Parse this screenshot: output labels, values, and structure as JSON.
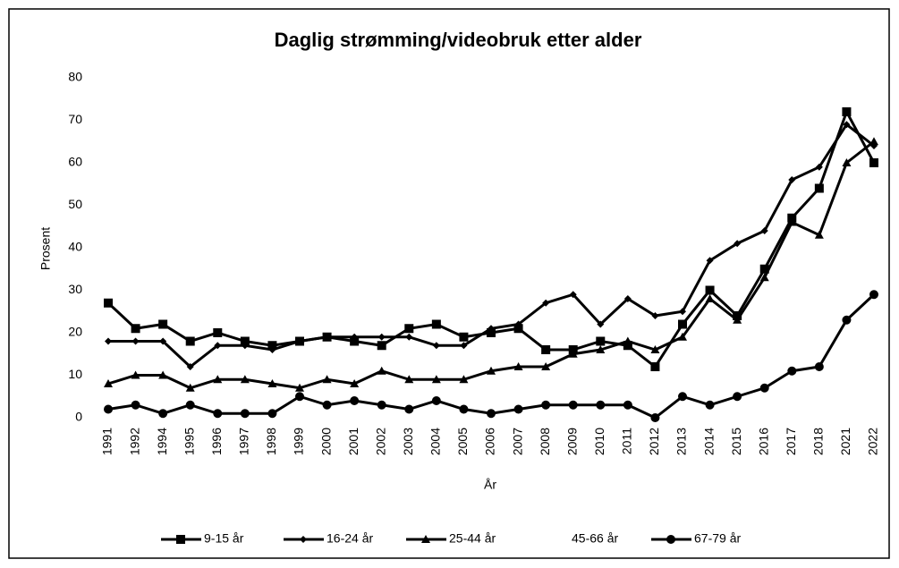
{
  "chart_data": {
    "type": "line",
    "title": "Daglig strømming/videobruk etter alder",
    "x_label": "År",
    "y_label": "Prosent",
    "categories": [
      "1991",
      "1992",
      "1994",
      "1995",
      "1996",
      "1997",
      "1998",
      "1999",
      "2000",
      "2001",
      "2002",
      "2003",
      "2004",
      "2005",
      "2006",
      "2007",
      "2008",
      "2009",
      "2010",
      "2011",
      "2012",
      "2013",
      "2014",
      "2015",
      "2016",
      "2017",
      "2018",
      "2021",
      "2022"
    ],
    "ylim": [
      0,
      80
    ],
    "yticks": [
      0,
      10,
      20,
      30,
      40,
      50,
      60,
      70,
      80
    ],
    "grid": false,
    "legend": "bottom",
    "series": [
      {
        "name": "9-15 år",
        "color": "#000000",
        "marker": "square",
        "values": [
          27,
          21,
          22,
          18,
          20,
          18,
          17,
          18,
          19,
          18,
          17,
          21,
          22,
          19,
          20,
          21,
          16,
          16,
          18,
          17,
          12,
          22,
          30,
          24,
          35,
          47,
          54,
          72,
          60
        ]
      },
      {
        "name": "16-24 år",
        "color": "#000000",
        "marker": "diamond",
        "values": [
          18,
          18,
          18,
          12,
          17,
          17,
          16,
          18,
          19,
          19,
          19,
          19,
          17,
          17,
          21,
          22,
          27,
          29,
          22,
          28,
          24,
          25,
          37,
          41,
          44,
          56,
          59,
          69,
          64
        ]
      },
      {
        "name": "25-44 år",
        "color": "#000000",
        "marker": "triangle",
        "values": [
          8,
          10,
          10,
          7,
          9,
          9,
          8,
          7,
          9,
          8,
          11,
          9,
          9,
          9,
          11,
          12,
          12,
          15,
          16,
          18,
          16,
          19,
          28,
          23,
          33,
          46,
          43,
          60,
          65
        ]
      },
      {
        "name": "45-66 år",
        "color": "none",
        "marker": "none",
        "values": [
          null,
          null,
          null,
          null,
          null,
          null,
          null,
          null,
          null,
          null,
          null,
          null,
          null,
          null,
          null,
          null,
          null,
          null,
          null,
          null,
          null,
          null,
          null,
          null,
          null,
          null,
          null,
          null,
          null
        ]
      },
      {
        "name": "67-79 år",
        "color": "#000000",
        "marker": "circle",
        "values": [
          2,
          3,
          1,
          3,
          1,
          1,
          1,
          5,
          3,
          4,
          3,
          2,
          4,
          2,
          1,
          2,
          3,
          3,
          3,
          3,
          0,
          5,
          3,
          5,
          7,
          11,
          12,
          23,
          29
        ]
      }
    ]
  }
}
